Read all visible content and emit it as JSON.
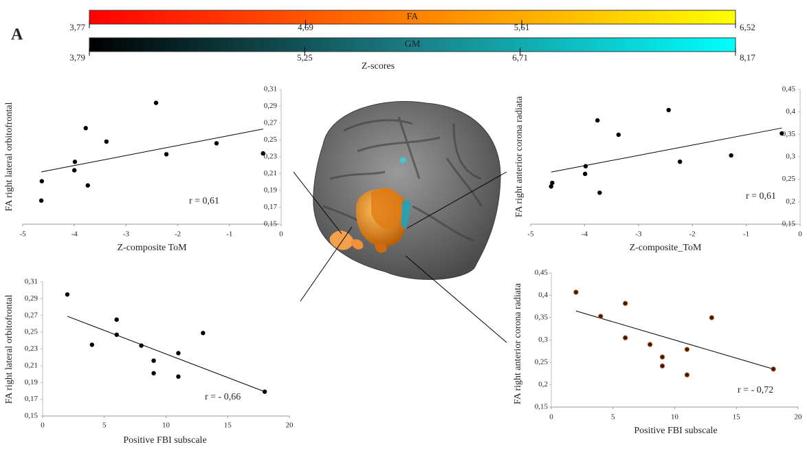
{
  "panel_label": "A",
  "legend_title": "Z-scores",
  "colorbars": [
    {
      "name": "FA",
      "colors": [
        "#ff0000",
        "#ff8000",
        "#ffff00"
      ],
      "lim": [
        3.77,
        6.52
      ],
      "ticks": [
        {
          "value": 3.77,
          "label": "3,77"
        },
        {
          "value": 4.69,
          "label": "4,69"
        },
        {
          "value": 5.61,
          "label": "5,61"
        },
        {
          "value": 6.52,
          "label": "6,52"
        }
      ]
    },
    {
      "name": "GM",
      "colors": [
        "#000000",
        "#1a7f86",
        "#00ffff"
      ],
      "lim": [
        3.79,
        8.17
      ],
      "ticks": [
        {
          "value": 3.79,
          "label": "3,79"
        },
        {
          "value": 5.25,
          "label": "5,25"
        },
        {
          "value": 6.71,
          "label": "6,71"
        },
        {
          "value": 8.17,
          "label": "8,17"
        }
      ]
    }
  ],
  "chart_data": [
    {
      "type": "scatter",
      "x_label": "Z-composite ToM",
      "y_label": "FA right lateral orbitofrontal",
      "annotation": "r = 0,61",
      "color": "#000000",
      "x": [
        -4.64,
        -4.63,
        -3.78,
        -3.38,
        -2.42,
        -2.22,
        -3.99,
        -4.0,
        -3.74,
        -1.25,
        -0.35
      ],
      "values": [
        0.178,
        0.201,
        0.264,
        0.248,
        0.294,
        0.233,
        0.224,
        0.214,
        0.196,
        0.246,
        0.234
      ],
      "trendline": {
        "x": [
          -4.64,
          -0.35
        ],
        "values": [
          0.212,
          0.263
        ]
      },
      "xlim": [
        -5,
        0
      ],
      "xticks": [
        -5,
        -4,
        -3,
        -2,
        -1,
        0
      ],
      "ylim": [
        0.15,
        0.31
      ],
      "yticks": [
        {
          "value": 0.15,
          "label": "0,15"
        },
        {
          "value": 0.17,
          "label": "0,17"
        },
        {
          "value": 0.19,
          "label": "0,19"
        },
        {
          "value": 0.21,
          "label": "0,21"
        },
        {
          "value": 0.23,
          "label": "0,23"
        },
        {
          "value": 0.25,
          "label": "0,25"
        },
        {
          "value": 0.27,
          "label": "0,27"
        },
        {
          "value": 0.29,
          "label": "0,29"
        },
        {
          "value": 0.31,
          "label": "0,31"
        }
      ]
    },
    {
      "type": "scatter",
      "x_label": "Z-composite_ToM",
      "y_label": "FA right anterior corona radiata",
      "annotation": "r = 0,61",
      "color": "#000000",
      "x": [
        -4.62,
        -4.6,
        -3.76,
        -3.37,
        -2.44,
        -2.23,
        -3.99,
        -3.98,
        -3.72,
        -1.28,
        -0.34
      ],
      "values": [
        0.234,
        0.242,
        0.381,
        0.349,
        0.404,
        0.289,
        0.262,
        0.279,
        0.22,
        0.303,
        0.352
      ],
      "trendline": {
        "x": [
          -4.62,
          -0.34
        ],
        "values": [
          0.266,
          0.364
        ]
      },
      "xlim": [
        -5,
        0
      ],
      "xticks": [
        -5,
        -4,
        -3,
        -2,
        -1,
        0
      ],
      "ylim": [
        0.15,
        0.45
      ],
      "yticks": [
        {
          "value": 0.15,
          "label": "0,15"
        },
        {
          "value": 0.2,
          "label": "0,2"
        },
        {
          "value": 0.25,
          "label": "0,25"
        },
        {
          "value": 0.3,
          "label": "0,3"
        },
        {
          "value": 0.35,
          "label": "0,35"
        },
        {
          "value": 0.4,
          "label": "0,4"
        },
        {
          "value": 0.45,
          "label": "0,45"
        }
      ]
    },
    {
      "type": "scatter",
      "x_label": "Positive FBI subscale",
      "y_label": "FA right lateral orbitofrontal",
      "annotation": "r = - 0,66",
      "color": "#000000",
      "x": [
        2,
        4,
        6,
        6,
        8,
        9,
        9,
        11,
        11,
        13,
        18
      ],
      "values": [
        0.295,
        0.235,
        0.265,
        0.247,
        0.234,
        0.216,
        0.201,
        0.225,
        0.197,
        0.249,
        0.179
      ],
      "trendline": {
        "x": [
          2,
          18
        ],
        "values": [
          0.269,
          0.179
        ]
      },
      "xlim": [
        0,
        20
      ],
      "xticks": [
        0,
        5,
        10,
        15,
        20
      ],
      "ylim": [
        0.15,
        0.31
      ],
      "yticks": [
        {
          "value": 0.15,
          "label": "0,15"
        },
        {
          "value": 0.17,
          "label": "0,17"
        },
        {
          "value": 0.19,
          "label": "0,19"
        },
        {
          "value": 0.21,
          "label": "0,21"
        },
        {
          "value": 0.23,
          "label": "0,23"
        },
        {
          "value": 0.25,
          "label": "0,25"
        },
        {
          "value": 0.27,
          "label": "0,27"
        },
        {
          "value": 0.29,
          "label": "0,29"
        },
        {
          "value": 0.31,
          "label": "0,31"
        }
      ]
    },
    {
      "type": "scatter",
      "x_label": "Positive FBI subscale",
      "y_label": "FA right anterior corona radiata",
      "annotation": "r = - 0,72",
      "color": "#3a1a08",
      "x": [
        2,
        4,
        6,
        6,
        8,
        9,
        9,
        11,
        11,
        13,
        18
      ],
      "values": [
        0.407,
        0.353,
        0.382,
        0.305,
        0.29,
        0.262,
        0.242,
        0.279,
        0.222,
        0.35,
        0.235
      ],
      "trendline": {
        "x": [
          2,
          18
        ],
        "values": [
          0.365,
          0.235
        ]
      },
      "xlim": [
        0,
        20
      ],
      "xticks": [
        0,
        5,
        10,
        15,
        20
      ],
      "ylim": [
        0.15,
        0.45
      ],
      "yticks": [
        {
          "value": 0.15,
          "label": "0,15"
        },
        {
          "value": 0.2,
          "label": "0,2"
        },
        {
          "value": 0.25,
          "label": "0,25"
        },
        {
          "value": 0.3,
          "label": "0,3"
        },
        {
          "value": 0.35,
          "label": "0,35"
        },
        {
          "value": 0.4,
          "label": "0,4"
        },
        {
          "value": 0.45,
          "label": "0,45"
        }
      ]
    }
  ]
}
